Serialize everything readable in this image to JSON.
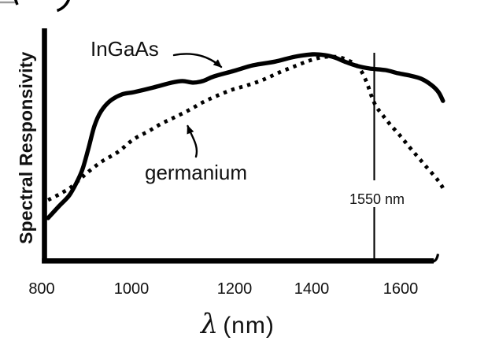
{
  "colors": {
    "ink": "#000000",
    "text": "#111111",
    "background": "#ffffff",
    "fragment_gray": "#9a9a9a"
  },
  "y_axis": {
    "label": "Spectral Responsivity"
  },
  "x_axis": {
    "label_symbol": "λ",
    "label_unit": "(nm)",
    "ticks": [
      "800",
      "1000",
      "1200",
      "1400",
      "1600"
    ]
  },
  "annotations": {
    "ingaas": "InGaAs",
    "germanium": "germanium",
    "marker": "1550 nm"
  },
  "chart_data": {
    "type": "line",
    "title": "",
    "xlabel": "λ (nm)",
    "ylabel": "Spectral Responsivity",
    "x_range": [
      800,
      1700
    ],
    "x_ticks": [
      800,
      1000,
      1200,
      1400,
      1600
    ],
    "y_range": [
      0,
      1
    ],
    "y_units": "relative responsivity (y axis unlabeled, arbitrary units)",
    "grid": false,
    "legend": "inline text annotations with arrows",
    "vertical_marker": {
      "label": "1550 nm",
      "x_nm": 1550
    },
    "series": [
      {
        "name": "InGaAs",
        "style": "solid",
        "points": [
          [
            816,
            0.184
          ],
          [
            840,
            0.235
          ],
          [
            863,
            0.282
          ],
          [
            881,
            0.344
          ],
          [
            893,
            0.398
          ],
          [
            905,
            0.48
          ],
          [
            919,
            0.582
          ],
          [
            933,
            0.643
          ],
          [
            954,
            0.69
          ],
          [
            980,
            0.718
          ],
          [
            1007,
            0.728
          ],
          [
            1050,
            0.748
          ],
          [
            1091,
            0.769
          ],
          [
            1115,
            0.776
          ],
          [
            1138,
            0.769
          ],
          [
            1160,
            0.776
          ],
          [
            1185,
            0.796
          ],
          [
            1230,
            0.82
          ],
          [
            1272,
            0.844
          ],
          [
            1321,
            0.86
          ],
          [
            1365,
            0.881
          ],
          [
            1404,
            0.891
          ],
          [
            1430,
            0.888
          ],
          [
            1453,
            0.878
          ],
          [
            1479,
            0.857
          ],
          [
            1505,
            0.84
          ],
          [
            1531,
            0.83
          ],
          [
            1566,
            0.823
          ],
          [
            1593,
            0.81
          ],
          [
            1619,
            0.8
          ],
          [
            1645,
            0.786
          ],
          [
            1668,
            0.759
          ],
          [
            1684,
            0.728
          ],
          [
            1694,
            0.69
          ]
        ]
      },
      {
        "name": "germanium",
        "style": "dotted",
        "points": [
          [
            816,
            0.262
          ],
          [
            840,
            0.286
          ],
          [
            866,
            0.316
          ],
          [
            888,
            0.354
          ],
          [
            910,
            0.391
          ],
          [
            936,
            0.429
          ],
          [
            971,
            0.469
          ],
          [
            1006,
            0.524
          ],
          [
            1041,
            0.561
          ],
          [
            1068,
            0.592
          ],
          [
            1097,
            0.619
          ],
          [
            1129,
            0.65
          ],
          [
            1160,
            0.684
          ],
          [
            1190,
            0.711
          ],
          [
            1225,
            0.738
          ],
          [
            1260,
            0.758
          ],
          [
            1295,
            0.782
          ],
          [
            1330,
            0.813
          ],
          [
            1365,
            0.84
          ],
          [
            1397,
            0.864
          ],
          [
            1423,
            0.878
          ],
          [
            1444,
            0.881
          ],
          [
            1465,
            0.878
          ],
          [
            1484,
            0.864
          ],
          [
            1500,
            0.847
          ],
          [
            1514,
            0.813
          ],
          [
            1526,
            0.762
          ],
          [
            1535,
            0.711
          ],
          [
            1545,
            0.667
          ],
          [
            1558,
            0.633
          ],
          [
            1575,
            0.592
          ],
          [
            1598,
            0.541
          ],
          [
            1624,
            0.48
          ],
          [
            1654,
            0.412
          ],
          [
            1684,
            0.344
          ],
          [
            1698,
            0.299
          ]
        ]
      }
    ]
  }
}
